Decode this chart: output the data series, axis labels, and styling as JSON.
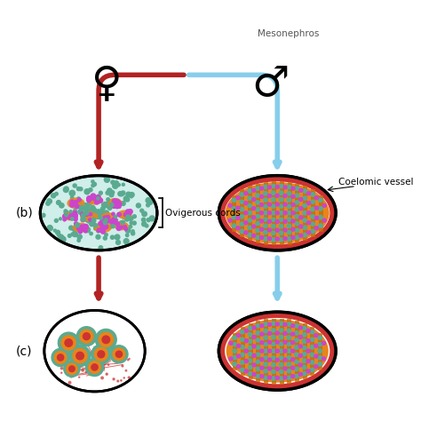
{
  "bg_color": "#ffffff",
  "female_color": "#b22222",
  "male_color": "#87ceeb",
  "female_symbol": "♀",
  "male_symbol": "♂",
  "label_b": "(b)",
  "label_c": "(c)",
  "label_ovigerous": "Ovigerous cords",
  "label_coelomic": "Coelomic vessel",
  "label_mesonephros": "Mesonephros",
  "teal_color": "#5aaa90",
  "orange_color": "#e8851a",
  "purple_color": "#cc44cc",
  "red_cord": "#cc3333",
  "dark_orange": "#c86800"
}
